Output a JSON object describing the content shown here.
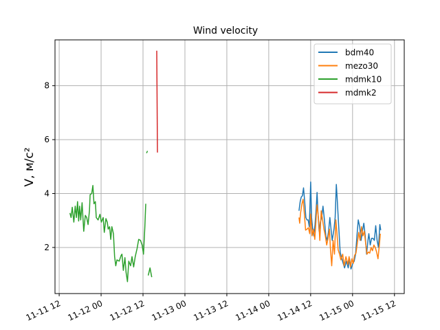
{
  "chart_data": {
    "type": "line",
    "title": "Wind velocity",
    "xlabel": "",
    "ylabel": "V, м/с²",
    "x_units": "hours since 11-11 00",
    "xlim": [
      10.8,
      110.8
    ],
    "ylim": [
      0.29,
      9.7
    ],
    "grid": true,
    "legend_position": "top-right",
    "xticks": [
      {
        "value": 12,
        "label": "11-11 12"
      },
      {
        "value": 24,
        "label": "11-12 00"
      },
      {
        "value": 36,
        "label": "11-12 12"
      },
      {
        "value": 48,
        "label": "11-13 00"
      },
      {
        "value": 60,
        "label": "11-13 12"
      },
      {
        "value": 72,
        "label": "11-14 00"
      },
      {
        "value": 84,
        "label": "11-14 12"
      },
      {
        "value": 96,
        "label": "11-15 00"
      },
      {
        "value": 108,
        "label": "11-15 12"
      }
    ],
    "yticks": [
      {
        "value": 2,
        "label": "2"
      },
      {
        "value": 4,
        "label": "4"
      },
      {
        "value": 6,
        "label": "6"
      },
      {
        "value": 8,
        "label": "8"
      }
    ],
    "series": [
      {
        "name": "bdm40",
        "color": "#1f77b4",
        "x": [
          80.66,
          80.99,
          81.31,
          81.64,
          81.97,
          82.3,
          82.63,
          82.95,
          83.28,
          83.61,
          84.0,
          84.27,
          84.59,
          84.92,
          85.25,
          85.58,
          85.84,
          86.1,
          86.43,
          86.76,
          87.15,
          87.54,
          87.94,
          88.33,
          88.73,
          89.12,
          89.51,
          89.84,
          90.17,
          90.69,
          91.02,
          91.35,
          91.61,
          92.0,
          92.46,
          92.92,
          93.32,
          93.71,
          94.23,
          94.76,
          95.15,
          95.55,
          96.07,
          96.46,
          96.86,
          97.25,
          97.64,
          98.04,
          98.43,
          98.82,
          99.22,
          99.61,
          100.01,
          100.4,
          100.66,
          101.05,
          101.45,
          101.84,
          102.23,
          102.63,
          103.02,
          103.41,
          103.81,
          104.07
        ],
        "y": [
          3.36,
          3.7,
          3.87,
          3.92,
          4.21,
          3.7,
          3.11,
          3.02,
          3.02,
          2.77,
          4.43,
          3.11,
          2.68,
          2.43,
          2.85,
          3.45,
          4.04,
          3.28,
          2.6,
          2.94,
          3.11,
          3.53,
          3.02,
          2.43,
          2.26,
          2.6,
          3.11,
          2.68,
          2.26,
          2.68,
          3.11,
          4.34,
          3.79,
          2.85,
          1.83,
          1.58,
          1.41,
          1.24,
          1.49,
          1.24,
          1.58,
          1.2,
          1.41,
          1.49,
          1.75,
          2.43,
          3.02,
          2.77,
          2.26,
          2.6,
          2.9,
          2.43,
          1.75,
          2.26,
          2.51,
          2.09,
          2.34,
          2.34,
          2.26,
          2.81,
          2.26,
          2.0,
          2.85,
          2.64
        ]
      },
      {
        "name": "mezo30",
        "color": "#ff7f0e",
        "x": [
          80.66,
          80.86,
          81.12,
          81.51,
          81.84,
          82.17,
          82.56,
          82.95,
          83.35,
          83.74,
          84.0,
          84.4,
          84.79,
          85.18,
          85.58,
          85.84,
          86.23,
          86.63,
          87.02,
          87.41,
          87.81,
          88.2,
          88.59,
          88.99,
          89.38,
          89.64,
          90.04,
          90.43,
          90.82,
          91.22,
          91.48,
          91.87,
          92.27,
          92.66,
          93.18,
          93.58,
          94.1,
          94.63,
          95.02,
          95.41,
          95.81,
          96.2,
          96.59,
          96.99,
          97.38,
          97.77,
          98.17,
          98.56,
          98.96,
          99.35,
          99.74,
          100.14,
          100.53,
          100.92,
          101.32,
          101.71,
          102.1,
          102.5,
          102.89,
          103.28,
          103.68,
          103.94
        ],
        "y": [
          3.11,
          2.9,
          3.28,
          3.62,
          3.79,
          3.28,
          2.64,
          2.68,
          2.73,
          2.51,
          3.24,
          2.43,
          2.68,
          2.3,
          3.11,
          3.58,
          3.11,
          2.26,
          3.36,
          3.02,
          2.68,
          2.43,
          2.09,
          2.34,
          2.68,
          2.0,
          1.32,
          2.26,
          1.75,
          3.02,
          2.6,
          1.92,
          1.75,
          1.54,
          1.75,
          1.32,
          1.66,
          1.37,
          1.66,
          1.28,
          1.58,
          1.41,
          1.71,
          1.79,
          2.17,
          2.56,
          2.26,
          2.77,
          2.43,
          2.6,
          2.17,
          1.75,
          1.83,
          1.79,
          2.0,
          1.88,
          2.09,
          2.0,
          1.83,
          1.58,
          2.09,
          2.51
        ]
      },
      {
        "name": "mdmk10",
        "color": "#2ca02c",
        "x": [
          15.08,
          15.41,
          15.74,
          16.2,
          16.59,
          16.92,
          17.25,
          17.57,
          17.84,
          18.16,
          18.56,
          19.02,
          19.48,
          19.87,
          20.26,
          20.66,
          20.85,
          21.31,
          21.64,
          21.97,
          22.36,
          22.62,
          23.15,
          23.67,
          24.07,
          24.59,
          24.92,
          25.38,
          25.77,
          26.03,
          26.43,
          26.76,
          27.08,
          27.54,
          27.87,
          28.2,
          28.53,
          29.18,
          29.71,
          29.97,
          30.36,
          30.82,
          31.15,
          31.54,
          31.93,
          32.46,
          32.85,
          33.31,
          33.77,
          34.3,
          34.75,
          35.28,
          35.74,
          36.13,
          36.53,
          36.79,
          null,
          37.0,
          37.3,
          null,
          37.5,
          38.0,
          38.5
        ],
        "y": [
          3.28,
          3.11,
          3.49,
          2.94,
          3.53,
          3.11,
          3.7,
          2.98,
          3.53,
          3.02,
          3.66,
          2.6,
          3.19,
          3.11,
          2.85,
          3.36,
          3.96,
          4.0,
          4.3,
          3.62,
          3.7,
          3.11,
          3.02,
          3.23,
          2.94,
          3.11,
          2.56,
          3.07,
          2.94,
          2.68,
          2.77,
          2.3,
          2.77,
          2.51,
          1.66,
          1.32,
          1.54,
          1.49,
          1.7,
          1.75,
          1.15,
          1.62,
          1.07,
          0.73,
          1.49,
          1.32,
          1.66,
          1.28,
          1.66,
          1.96,
          2.3,
          2.26,
          2.09,
          1.75,
          2.77,
          3.62,
          null,
          5.5,
          5.58,
          null,
          0.96,
          1.24,
          0.9
        ]
      },
      {
        "name": "mdmk2",
        "color": "#d62728",
        "x": [
          39.94,
          40.13
        ],
        "y": [
          9.3,
          5.52
        ]
      }
    ]
  }
}
